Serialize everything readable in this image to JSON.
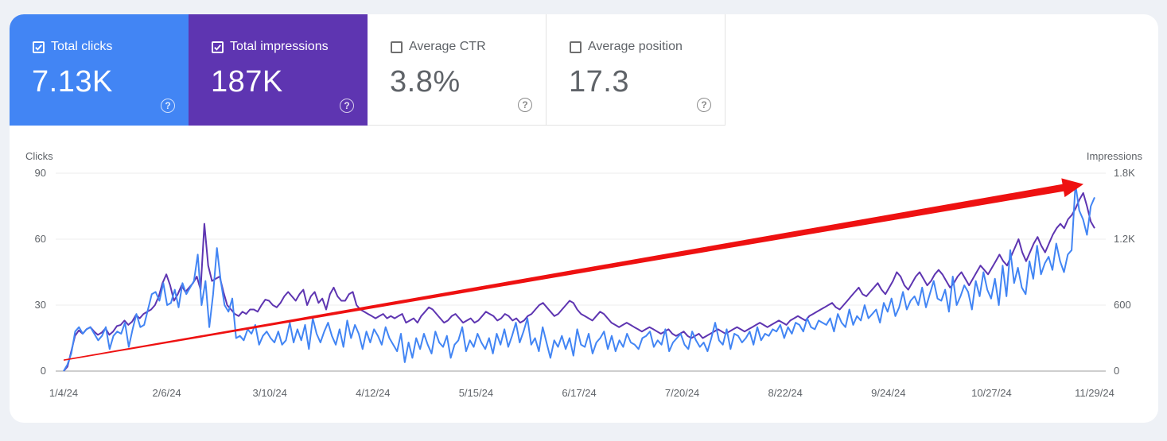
{
  "metrics": [
    {
      "label": "Total clicks",
      "value": "7.13K",
      "selected": true
    },
    {
      "label": "Total impressions",
      "value": "187K",
      "selected": true
    },
    {
      "label": "Average CTR",
      "value": "3.8%",
      "selected": false
    },
    {
      "label": "Average position",
      "value": "17.3",
      "selected": false
    }
  ],
  "colors": {
    "clicks": "#4285f4",
    "impressions": "#5e35b1",
    "annotation_arrow": "#ee1111"
  },
  "icons": {
    "checkbox_checked": "check-icon",
    "help": "help-circle-icon"
  },
  "help_glyph": "?",
  "chart_data": {
    "type": "line",
    "left_axis": {
      "label": "Clicks",
      "ticks": [
        "0",
        "30",
        "60",
        "90"
      ],
      "range": [
        0,
        90
      ]
    },
    "right_axis": {
      "label": "Impressions",
      "ticks": [
        "0",
        "600",
        "1.2K",
        "1.8K"
      ],
      "range": [
        0,
        1800
      ]
    },
    "x_ticks": [
      "1/4/24",
      "2/6/24",
      "3/10/24",
      "4/12/24",
      "5/15/24",
      "6/17/24",
      "7/20/24",
      "8/22/24",
      "9/24/24",
      "10/27/24",
      "11/29/24"
    ],
    "grid": true,
    "series": [
      {
        "name": "Clicks",
        "axis": "left",
        "values": [
          0,
          3,
          8,
          18,
          20,
          17,
          19,
          20,
          17,
          14,
          16,
          20,
          10,
          16,
          18,
          17,
          22,
          11,
          19,
          26,
          20,
          21,
          28,
          35,
          36,
          32,
          40,
          30,
          31,
          37,
          29,
          40,
          35,
          38,
          41,
          53,
          30,
          41,
          20,
          35,
          56,
          41,
          30,
          27,
          33,
          15,
          16,
          14,
          19,
          17,
          21,
          12,
          16,
          18,
          15,
          13,
          18,
          12,
          14,
          22,
          13,
          19,
          14,
          21,
          10,
          24,
          17,
          13,
          18,
          22,
          16,
          12,
          19,
          11,
          23,
          15,
          21,
          17,
          10,
          18,
          13,
          19,
          16,
          12,
          20,
          15,
          12,
          9,
          17,
          4,
          13,
          6,
          15,
          10,
          17,
          12,
          8,
          18,
          13,
          11,
          16,
          6,
          12,
          14,
          20,
          9,
          14,
          11,
          17,
          13,
          10,
          15,
          8,
          17,
          12,
          19,
          11,
          16,
          22,
          13,
          18,
          24,
          12,
          15,
          9,
          20,
          13,
          6,
          14,
          11,
          16,
          10,
          15,
          7,
          19,
          12,
          11,
          17,
          8,
          13,
          15,
          18,
          10,
          16,
          9,
          14,
          11,
          17,
          13,
          12,
          10,
          15,
          16,
          18,
          11,
          14,
          12,
          19,
          9,
          13,
          15,
          17,
          12,
          10,
          18,
          14,
          11,
          13,
          9,
          15,
          22,
          14,
          12,
          19,
          10,
          17,
          16,
          13,
          15,
          18,
          12,
          20,
          14,
          17,
          16,
          19,
          18,
          21,
          15,
          20,
          17,
          22,
          21,
          18,
          24,
          20,
          19,
          23,
          22,
          21,
          24,
          18,
          26,
          22,
          20,
          28,
          21,
          25,
          23,
          30,
          24,
          26,
          28,
          22,
          31,
          27,
          33,
          25,
          29,
          36,
          28,
          32,
          34,
          30,
          38,
          29,
          35,
          41,
          33,
          32,
          37,
          27,
          43,
          30,
          34,
          39,
          36,
          28,
          41,
          34,
          45,
          37,
          33,
          42,
          30,
          48,
          34,
          55,
          40,
          47,
          38,
          35,
          50,
          42,
          57,
          44,
          49,
          52,
          46,
          58,
          50,
          45,
          53,
          55,
          85,
          73,
          69,
          62,
          75,
          79
        ]
      },
      {
        "name": "Impressions",
        "axis": "right",
        "values": [
          0,
          40,
          180,
          320,
          370,
          340,
          380,
          400,
          360,
          330,
          350,
          390,
          330,
          360,
          410,
          420,
          460,
          420,
          450,
          510,
          480,
          520,
          540,
          560,
          600,
          680,
          800,
          880,
          780,
          640,
          700,
          780,
          720,
          760,
          800,
          860,
          740,
          1340,
          960,
          820,
          840,
          860,
          720,
          600,
          560,
          520,
          500,
          540,
          520,
          560,
          560,
          540,
          600,
          650,
          640,
          600,
          580,
          620,
          680,
          720,
          680,
          640,
          700,
          740,
          600,
          680,
          720,
          620,
          660,
          560,
          700,
          760,
          680,
          640,
          640,
          700,
          720,
          600,
          560,
          540,
          520,
          500,
          480,
          500,
          520,
          480,
          500,
          480,
          500,
          520,
          440,
          460,
          480,
          440,
          500,
          540,
          580,
          560,
          520,
          480,
          440,
          460,
          500,
          520,
          480,
          440,
          460,
          480,
          440,
          460,
          500,
          540,
          520,
          500,
          460,
          480,
          520,
          500,
          460,
          480,
          440,
          460,
          500,
          520,
          560,
          600,
          620,
          580,
          540,
          500,
          520,
          560,
          600,
          640,
          620,
          560,
          520,
          500,
          480,
          460,
          500,
          540,
          520,
          480,
          440,
          420,
          400,
          420,
          440,
          420,
          400,
          380,
          360,
          380,
          400,
          380,
          360,
          340,
          360,
          380,
          340,
          320,
          340,
          360,
          320,
          300,
          320,
          340,
          300,
          320,
          340,
          360,
          380,
          360,
          340,
          360,
          380,
          400,
          380,
          360,
          380,
          400,
          420,
          440,
          420,
          400,
          420,
          440,
          460,
          440,
          420,
          460,
          480,
          500,
          480,
          460,
          500,
          520,
          540,
          560,
          580,
          600,
          620,
          580,
          560,
          600,
          640,
          680,
          720,
          760,
          700,
          680,
          720,
          760,
          800,
          740,
          700,
          760,
          820,
          900,
          860,
          780,
          740,
          800,
          860,
          900,
          840,
          780,
          820,
          880,
          920,
          880,
          820,
          760,
          800,
          860,
          900,
          840,
          780,
          840,
          900,
          960,
          920,
          880,
          940,
          1000,
          1060,
          1000,
          960,
          1040,
          1120,
          1200,
          1080,
          1000,
          1080,
          1160,
          1220,
          1140,
          1080,
          1160,
          1240,
          1300,
          1340,
          1300,
          1380,
          1420,
          1480,
          1560,
          1620,
          1500,
          1360,
          1300
        ]
      }
    ],
    "annotation": {
      "type": "arrow",
      "from": {
        "x": "1/4/24",
        "clicks": 5
      },
      "to": {
        "x": "11/29/24",
        "clicks": 85
      }
    }
  }
}
